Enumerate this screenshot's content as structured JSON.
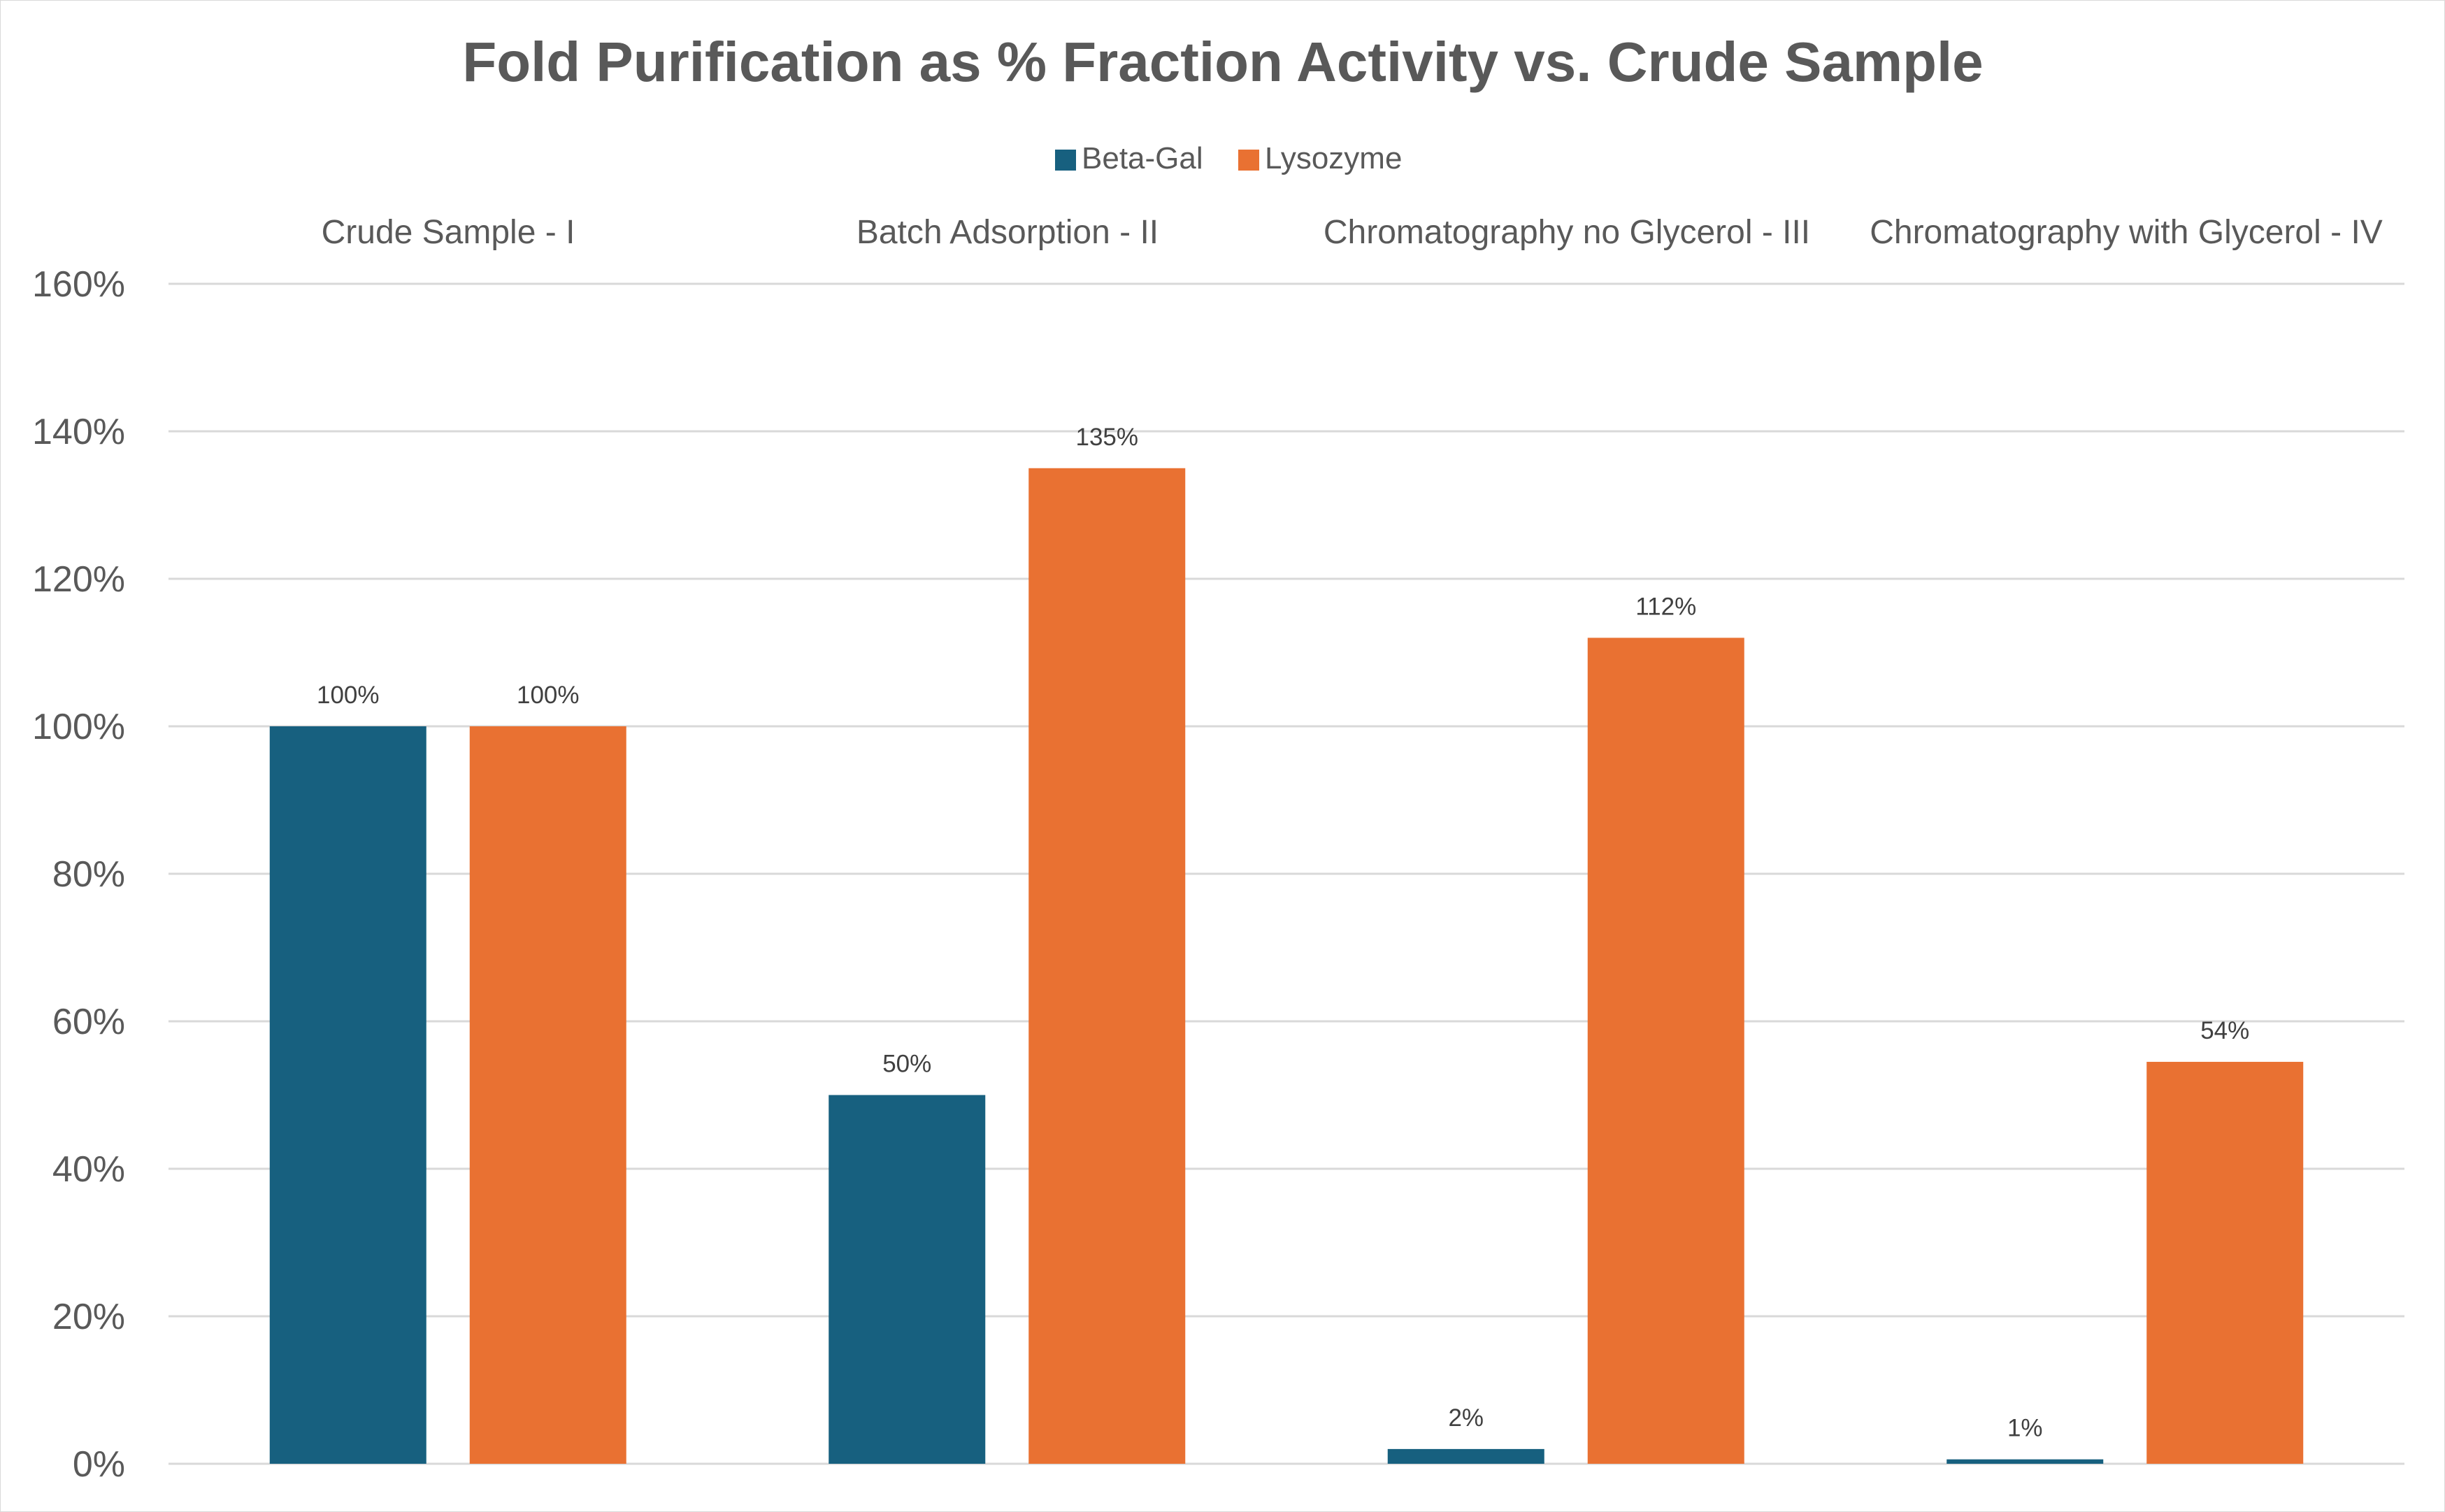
{
  "chart_data": {
    "type": "bar",
    "title": "Fold Purification as % Fraction Activity vs. Crude Sample",
    "categories": [
      "Crude Sample - I",
      "Batch Adsorption - II",
      "Chromatography no Glycerol - III",
      "Chromatography with Glycerol - IV"
    ],
    "series": [
      {
        "name": "Beta-Gal",
        "color": "#17607f",
        "values": [
          100,
          50,
          2,
          0.6
        ],
        "labels": [
          "100%",
          "50%",
          "2%",
          "1%"
        ]
      },
      {
        "name": "Lysozyme",
        "color": "#e97132",
        "values": [
          100,
          135,
          112,
          54.5
        ],
        "labels": [
          "100%",
          "135%",
          "112%",
          "54%"
        ]
      }
    ],
    "ylim": [
      0,
      160
    ],
    "yticks": [
      0,
      20,
      40,
      60,
      80,
      100,
      120,
      140,
      160
    ],
    "ytick_labels": [
      "0%",
      "20%",
      "40%",
      "60%",
      "80%",
      "100%",
      "120%",
      "140%",
      "160%"
    ],
    "xlabel": "",
    "ylabel": "",
    "grid": true,
    "legend_position": "top",
    "category_labels_position": "top",
    "gridline_color": "#d9d9d9"
  }
}
